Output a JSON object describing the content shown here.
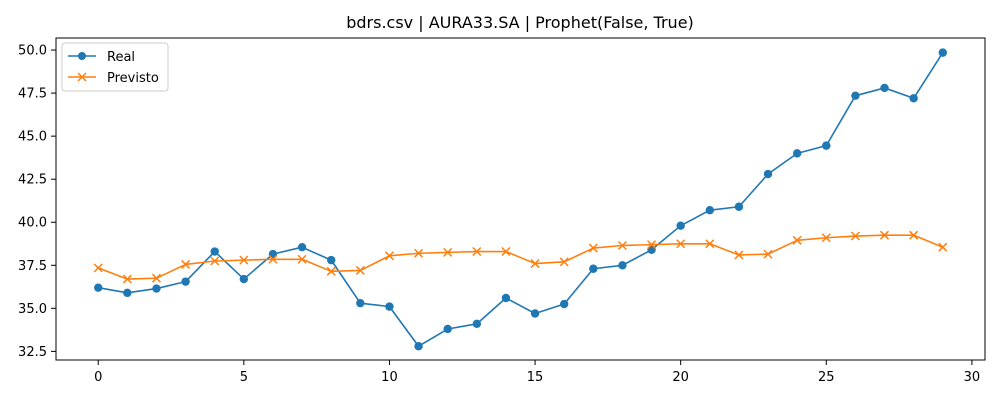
{
  "chart_data": {
    "type": "line",
    "title": "bdrs.csv | AURA33.SA | Prophet(False, True)",
    "xlabel": "",
    "ylabel": "",
    "xlim": [
      -1.45,
      30.45
    ],
    "ylim": [
      32.0,
      50.7
    ],
    "xticks": [
      0,
      5,
      10,
      15,
      20,
      25,
      30
    ],
    "yticks": [
      32.5,
      35.0,
      37.5,
      40.0,
      42.5,
      45.0,
      47.5,
      50.0
    ],
    "ytick_labels": [
      "32.5",
      "35.0",
      "37.5",
      "40.0",
      "42.5",
      "45.0",
      "47.5",
      "50.0"
    ],
    "grid": false,
    "legend_position": "top-left",
    "x": [
      0,
      1,
      2,
      3,
      4,
      5,
      6,
      7,
      8,
      9,
      10,
      11,
      12,
      13,
      14,
      15,
      16,
      17,
      18,
      19,
      20,
      21,
      22,
      23,
      24,
      25,
      26,
      27,
      28,
      29
    ],
    "series": [
      {
        "name": "Real",
        "color": "#1f77b4",
        "marker": "circle",
        "values": [
          36.2,
          35.9,
          36.15,
          36.55,
          38.3,
          36.7,
          38.15,
          38.55,
          37.8,
          35.3,
          35.1,
          32.8,
          33.8,
          34.1,
          35.6,
          34.7,
          35.25,
          37.3,
          37.5,
          38.4,
          39.8,
          40.7,
          40.9,
          42.8,
          44.0,
          44.45,
          47.35,
          47.8,
          47.2,
          49.85
        ]
      },
      {
        "name": "Previsto",
        "color": "#ff7f0e",
        "marker": "x",
        "values": [
          37.35,
          36.7,
          36.75,
          37.55,
          37.75,
          37.8,
          37.85,
          37.85,
          37.15,
          37.2,
          38.05,
          38.2,
          38.25,
          38.3,
          38.3,
          37.6,
          37.7,
          38.5,
          38.65,
          38.7,
          38.75,
          38.75,
          38.1,
          38.15,
          38.95,
          39.1,
          39.2,
          39.25,
          39.25,
          38.55
        ]
      }
    ]
  }
}
